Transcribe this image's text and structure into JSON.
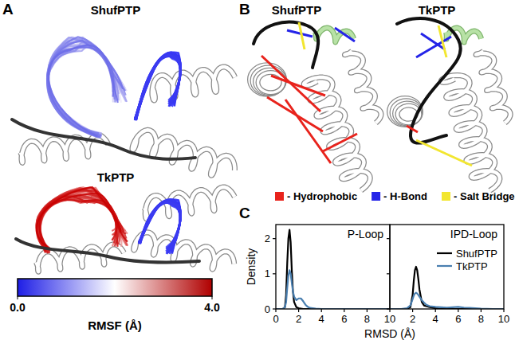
{
  "panel_a": {
    "letter": "A",
    "labels": [
      "ShufPTP",
      "TkPTP"
    ],
    "colorbar": {
      "title": "RMSF (Å)",
      "range": [
        0,
        4
      ],
      "ticks": [
        {
          "value": 0,
          "label": "0.0"
        },
        {
          "value": 4,
          "label": "4.0"
        }
      ]
    }
  },
  "panel_b": {
    "letter": "B",
    "labels": [
      "ShufPTP",
      "TkPTP"
    ],
    "legend": [
      {
        "name": "- Hydrophobic",
        "color": "#e8231c"
      },
      {
        "name": "- H-Bond",
        "color": "#2424e8"
      },
      {
        "name": "- Salt Bridge",
        "color": "#f2e630"
      }
    ]
  },
  "panel_c": {
    "letter": "C",
    "x_label": "RMSD (Å)",
    "y_label": "Density"
  },
  "chart_data": [
    {
      "type": "line",
      "title": "P-Loop",
      "x": [
        0,
        0.4,
        0.6,
        0.8,
        0.9,
        1.0,
        1.1,
        1.2,
        1.3,
        1.4,
        1.5,
        1.6,
        1.8,
        2.0,
        2.2,
        2.4,
        2.6,
        2.8,
        3.0,
        3.5,
        4,
        5,
        6,
        7,
        8,
        9,
        10
      ],
      "series": [
        {
          "name": "ShufPTP",
          "color": "#000000",
          "values": [
            0,
            0,
            0,
            0.05,
            0.4,
            1.3,
            2.0,
            2.25,
            1.9,
            1.1,
            0.5,
            0.2,
            0.05,
            0.02,
            0.01,
            0,
            0,
            0,
            0,
            0,
            0,
            0,
            0,
            0,
            0,
            0,
            0
          ]
        },
        {
          "name": "TkPTP",
          "color": "#4a7fb0",
          "values": [
            0,
            0,
            0,
            0.05,
            0.2,
            0.6,
            0.95,
            1.1,
            1.0,
            0.75,
            0.5,
            0.35,
            0.25,
            0.3,
            0.3,
            0.22,
            0.12,
            0.06,
            0.03,
            0.01,
            0,
            0,
            0,
            0,
            0,
            0,
            0
          ]
        }
      ],
      "xlim": [
        0,
        10
      ],
      "xticks": [
        0,
        2,
        4,
        6,
        8,
        10
      ],
      "ylim": [
        0,
        2.4
      ],
      "yticks": [
        0,
        1,
        2
      ]
    },
    {
      "type": "line",
      "title": "IPD-Loop",
      "x": [
        0,
        1,
        1.5,
        1.8,
        2.0,
        2.1,
        2.2,
        2.3,
        2.4,
        2.5,
        2.6,
        2.8,
        3.0,
        3.2,
        3.5,
        4,
        4.5,
        5,
        5.5,
        6,
        6.5,
        7,
        7.5,
        8,
        9,
        10
      ],
      "series": [
        {
          "name": "ShufPTP",
          "color": "#000000",
          "values": [
            0,
            0,
            0,
            0.05,
            0.4,
            0.8,
            1.1,
            1.2,
            1.1,
            0.85,
            0.55,
            0.2,
            0.1,
            0.08,
            0.05,
            0.02,
            0,
            0,
            0,
            0,
            0,
            0,
            0,
            0,
            0,
            0
          ]
        },
        {
          "name": "TkPTP",
          "color": "#4a7fb0",
          "values": [
            0,
            0,
            0.02,
            0.1,
            0.28,
            0.38,
            0.44,
            0.46,
            0.44,
            0.4,
            0.35,
            0.25,
            0.18,
            0.12,
            0.08,
            0.06,
            0.05,
            0.04,
            0.05,
            0.06,
            0.04,
            0.03,
            0.02,
            0.01,
            0,
            0
          ]
        }
      ],
      "xlim": [
        0,
        10
      ],
      "xticks": [
        2,
        4,
        6,
        8,
        10
      ],
      "ylim": [
        0,
        2.4
      ],
      "yticks": [
        0,
        1,
        2
      ],
      "tick_labels": "x",
      "legend": "upper right"
    }
  ]
}
